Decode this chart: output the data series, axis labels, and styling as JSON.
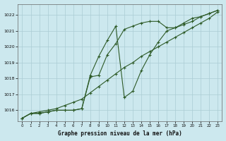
{
  "title": "Graphe pression niveau de la mer (hPa)",
  "xlim": [
    -0.5,
    23.5
  ],
  "ylim": [
    1015.3,
    1022.7
  ],
  "yticks": [
    1016,
    1017,
    1018,
    1019,
    1020,
    1021,
    1022
  ],
  "xticks": [
    0,
    1,
    2,
    3,
    4,
    5,
    6,
    7,
    8,
    9,
    10,
    11,
    12,
    13,
    14,
    15,
    16,
    17,
    18,
    19,
    20,
    21,
    22,
    23
  ],
  "background_color": "#cce8ee",
  "grid_color": "#aaccd4",
  "line_color": "#2d5a27",
  "line1_y": [
    1015.5,
    1015.8,
    1015.9,
    1016.0,
    1016.1,
    1016.3,
    1016.5,
    1016.7,
    1017.1,
    1017.5,
    1017.9,
    1018.3,
    1018.7,
    1019.0,
    1019.4,
    1019.7,
    1020.0,
    1020.3,
    1020.6,
    1020.9,
    1021.2,
    1021.5,
    1021.8,
    1022.2
  ],
  "line2_y": [
    1015.5,
    1015.8,
    1015.8,
    1015.9,
    1016.0,
    1016.0,
    1016.0,
    1016.1,
    1018.1,
    1018.2,
    1019.5,
    1020.2,
    1021.1,
    1021.3,
    1021.5,
    1021.6,
    1021.6,
    1021.2,
    1021.2,
    1021.5,
    1021.8,
    1021.9,
    1022.1,
    1022.3
  ],
  "line3_y": [
    1015.5,
    1015.8,
    1015.8,
    1015.9,
    1016.0,
    1016.0,
    1016.0,
    1016.1,
    1018.2,
    1019.4,
    1020.4,
    1021.3,
    1016.8,
    1017.2,
    1018.5,
    1019.5,
    1020.3,
    1021.0,
    1021.2,
    1021.4,
    1021.6,
    1021.9,
    1022.1,
    1022.3
  ]
}
